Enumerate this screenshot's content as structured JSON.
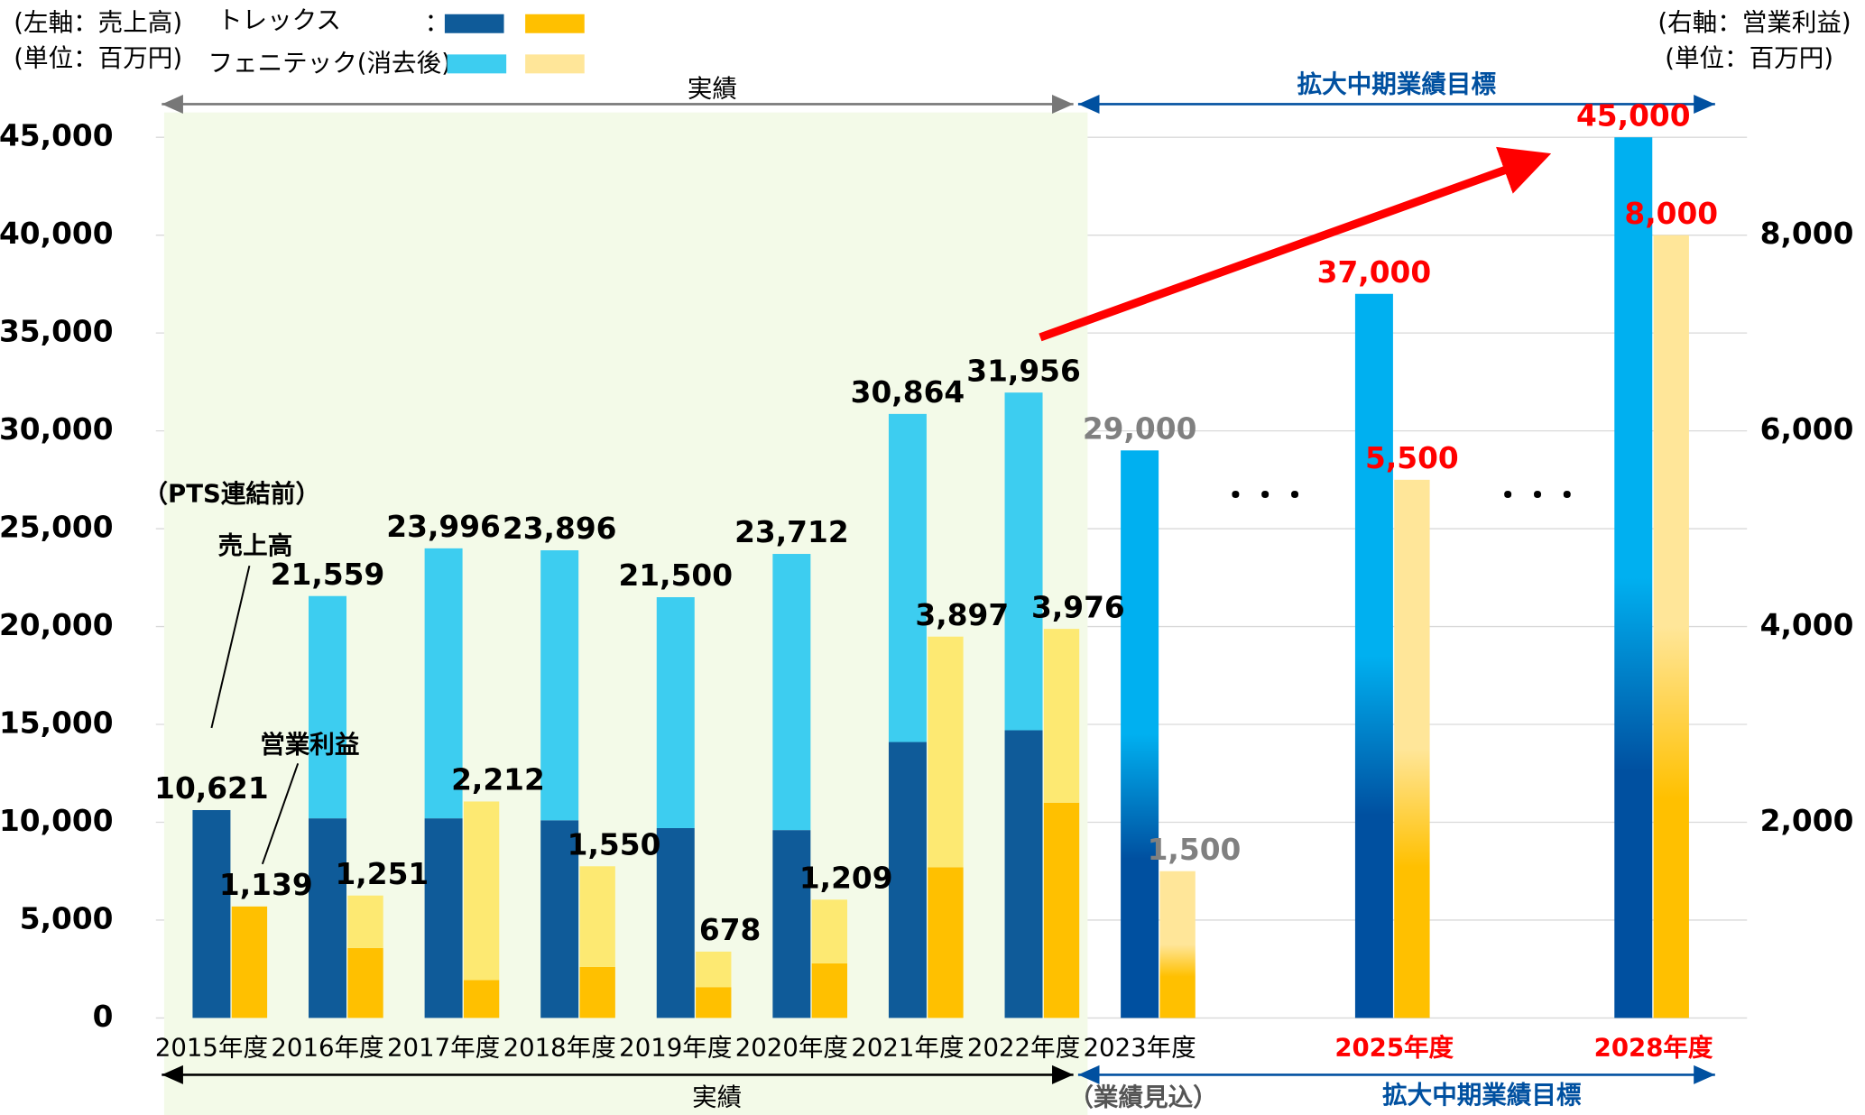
{
  "chart_data": {
    "type": "bar",
    "categories": [
      "2015年度",
      "2016年度",
      "2017年度",
      "2018年度",
      "2019年度",
      "2020年度",
      "2021年度",
      "2022年度",
      "2023年度",
      "2025年度",
      "2028年度"
    ],
    "category_colors": [
      "#000000",
      "#000000",
      "#000000",
      "#000000",
      "#000000",
      "#000000",
      "#000000",
      "#000000",
      "#000000",
      "#ff0000",
      "#ff0000"
    ],
    "series": [
      {
        "name": "トレックス",
        "color": "#0f5b99",
        "axis": "y",
        "values": [
          10621,
          10200,
          10200,
          10100,
          9700,
          9600,
          14100,
          14700,
          null,
          null,
          null
        ]
      },
      {
        "name": "フェニテック(消去後)",
        "color": "#3dcdf0",
        "axis": "y",
        "values": [
          null,
          11359,
          13796,
          13796,
          11800,
          14112,
          16764,
          17256,
          null,
          null,
          null
        ]
      },
      {
        "color": "#0050a0",
        "color_top": "#00b0f0",
        "axis": "y",
        "values": [
          null,
          null,
          null,
          null,
          null,
          null,
          null,
          null,
          29000,
          37000,
          45000
        ]
      },
      {
        "color": "#ffc000",
        "axis": "y2",
        "values": [
          1139,
          715,
          388,
          521,
          315,
          558,
          1540,
          2200,
          null,
          null,
          null
        ]
      },
      {
        "color": "#fde972",
        "axis": "y2",
        "values": [
          null,
          536,
          1824,
          1029,
          363,
          651,
          2357,
          1776,
          null,
          null,
          null
        ]
      },
      {
        "color": "#ffc000",
        "color_top": "#ffe699",
        "axis": "y2",
        "values": [
          null,
          null,
          null,
          null,
          null,
          null,
          null,
          null,
          1500,
          5500,
          8000
        ]
      }
    ],
    "sales_labels": [
      "10,621",
      "21,559",
      "23,996",
      "23,896",
      "21,500",
      "23,712",
      "30,864",
      "31,956",
      "29,000",
      "37,000",
      "45,000"
    ],
    "profit_labels": [
      "1,139",
      "1,251",
      "2,212",
      "1,550",
      "678",
      "1,209",
      "3,897",
      "3,976",
      "1,500",
      "5,500",
      "8,000"
    ],
    "label_colors": [
      "#000000",
      "#000000",
      "#000000",
      "#000000",
      "#000000",
      "#000000",
      "#000000",
      "#000000",
      "#808080",
      "#ff0000",
      "#ff0000"
    ],
    "ylim": [
      0,
      45000
    ],
    "yticks": [
      0,
      {
        "value": 5000,
        "label": "5,000"
      },
      {
        "value": 10000,
        "label": "10,000"
      },
      {
        "value": 15000,
        "label": "15,000"
      },
      {
        "value": 20000,
        "label": "20,000"
      },
      {
        "value": 25000,
        "label": "25,000"
      },
      {
        "value": 30000,
        "label": "30,000"
      },
      {
        "value": 35000,
        "label": "35,000"
      },
      {
        "value": 40000,
        "label": "40,000"
      },
      {
        "value": 45000,
        "label": "45,000"
      }
    ],
    "y2lim": [
      0,
      9000
    ],
    "y2ticks": [
      {
        "value": 2000,
        "label": "2,000"
      },
      {
        "value": 4000,
        "label": "4,000"
      },
      {
        "value": 6000,
        "label": "6,000"
      },
      {
        "value": 8000,
        "label": "8,000"
      }
    ],
    "grid": true,
    "annotations": {
      "left_axis": "(左軸：売上高)",
      "left_unit": "(単位：百万円)",
      "right_axis": "(右軸：営業利益)",
      "right_unit": "(単位：百万円)",
      "legend_colon": "：",
      "actual_top": "実績",
      "target_top": "拡大中期業績目標",
      "actual_bottom": "実績",
      "target_bottom": "拡大中期業績目標",
      "forecast": "（業績見込）",
      "pts": "（PTS連結前）",
      "sales": "売上高",
      "profit": "営業利益",
      "dots1": "・・・",
      "dots2": "・・・"
    }
  }
}
